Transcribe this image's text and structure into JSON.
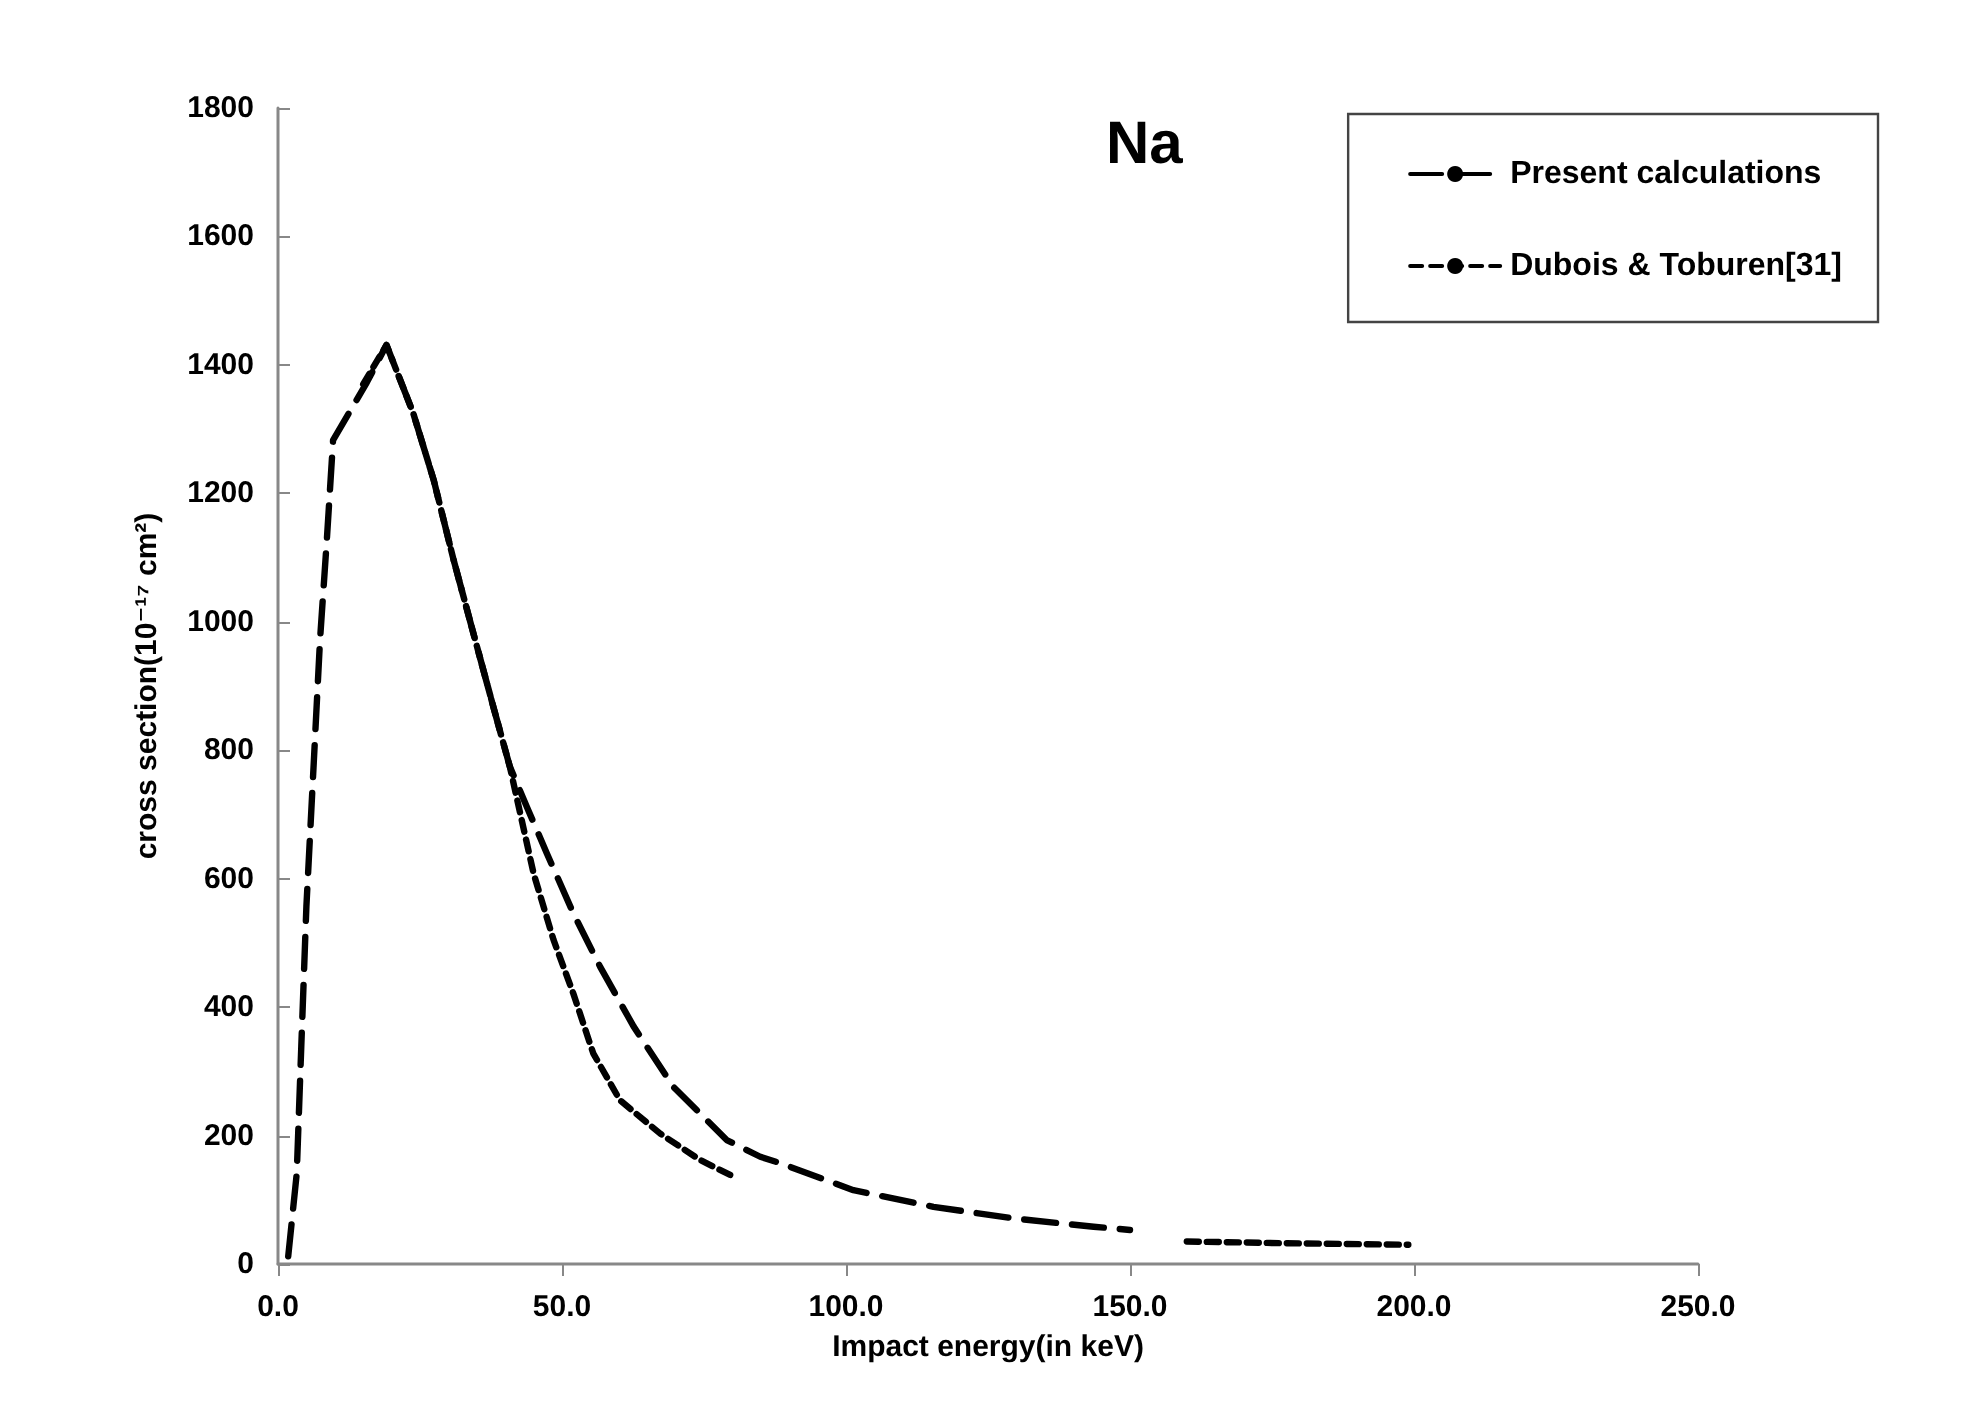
{
  "chart_data": {
    "type": "line",
    "title": "Na",
    "xlabel": "Impact energy(in keV)",
    "ylabel": "cross section(10⁻¹⁷ cm²)",
    "xlim": [
      0,
      250
    ],
    "xticks": [
      {
        "value": 0,
        "label": "0.0"
      },
      {
        "value": 50,
        "label": "50.0"
      },
      {
        "value": 100,
        "label": "100.0"
      },
      {
        "value": 150,
        "label": "150.0"
      },
      {
        "value": 200,
        "label": "200.0"
      },
      {
        "value": 250,
        "label": "250.0"
      }
    ],
    "ylim": [
      0,
      1800
    ],
    "yticks": [
      0,
      200,
      400,
      600,
      800,
      1000,
      1200,
      1400,
      1600,
      1800
    ],
    "grid": false,
    "legend": "top right",
    "marker": "none",
    "series": [
      {
        "name": "Present calculations",
        "color": "#000000",
        "line_style": "dashed",
        "x": [
          1.8,
          3.3,
          4.1,
          5.0,
          6.2,
          7.4,
          8.6,
          9.7,
          15.6,
          19.1,
          23.8,
          27.4,
          30.9,
          34.4,
          37.9,
          40.8,
          43.8,
          47.3,
          52,
          56.7,
          62.6,
          69.6,
          79,
          84.9,
          88.4,
          101.3,
          115.4,
          129.5,
          143.6,
          150
        ],
        "values": [
          12,
          141,
          339,
          557,
          764,
          972,
          1128,
          1283,
          1372,
          1431,
          1325,
          1221,
          1097,
          982,
          868,
          775,
          712,
          640,
          546,
          463,
          370,
          276,
          193,
          167,
          157,
          115,
          89,
          71,
          58,
          53
        ]
      },
      {
        "name": "Dubois & Toburen[31]",
        "color": "#000000",
        "line_style": "dotted",
        "x": [
          15,
          19.1,
          23.8,
          27.4,
          30.9,
          34.4,
          37.9,
          40.8,
          45,
          48.5,
          52,
          55.5,
          60.2,
          67.3,
          74.3,
          80.2,
          120,
          160,
          180,
          199
        ],
        "values": [
          1370,
          1431,
          1325,
          1221,
          1097,
          982,
          868,
          775,
          608,
          505,
          421,
          328,
          255,
          203,
          162,
          136,
          null,
          35,
          32,
          30
        ]
      }
    ]
  }
}
